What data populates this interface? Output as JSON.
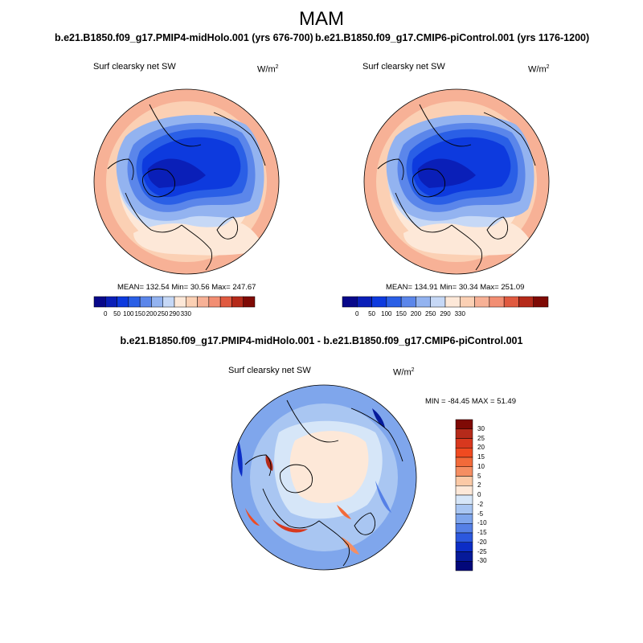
{
  "figure": {
    "season_title": "MAM"
  },
  "panels": [
    {
      "run_label": "b.e21.B1850.f09_g17.PMIP4-midHolo.001 (yrs 676-700)",
      "variable": "Surf clearsky net SW",
      "units_base": "W/m",
      "units_exp": "2",
      "stats": "MEAN= 132.54  Min=  30.56  Max= 247.67",
      "colorbar_ticks": [
        "0",
        "50",
        "100",
        "150",
        "200",
        "250",
        "290",
        "330"
      ]
    },
    {
      "run_label": "b.e21.B1850.f09_g17.CMIP6-piControl.001 (yrs 1176-1200)",
      "variable": "Surf clearsky net SW",
      "units_base": "W/m",
      "units_exp": "2",
      "stats": "MEAN= 134.91  Min=  30.34  Max= 251.09",
      "colorbar_ticks": [
        "0",
        "50",
        "100",
        "150",
        "200",
        "250",
        "290",
        "330"
      ]
    }
  ],
  "difference": {
    "title": "b.e21.B1850.f09_g17.PMIP4-midHolo.001 - b.e21.B1850.f09_g17.CMIP6-piControl.001",
    "variable": "Surf clearsky net SW",
    "units": "W/m",
    "units_exp": "2",
    "stats": "MIN = -84.45 MAX =  51.49",
    "colorbar_ticks": [
      "30",
      "25",
      "20",
      "15",
      "10",
      "5",
      "2",
      "0",
      "-2",
      "-5",
      "-10",
      "-15",
      "-20",
      "-25",
      "-30"
    ]
  },
  "colors": {
    "abs_scale": [
      "#08088a",
      "#0a1fb8",
      "#0d3ade",
      "#2a5fe6",
      "#5b86ea",
      "#93b3f0",
      "#c6d8f6",
      "#fde8d8",
      "#fbd0b4",
      "#f7b196",
      "#f28e73",
      "#e05a40",
      "#b52a1a",
      "#7f0a05"
    ],
    "diff_scale": [
      "#7f0a05",
      "#b52a1a",
      "#d8381e",
      "#f04a20",
      "#f26a3a",
      "#f58e62",
      "#fbc9a6",
      "#fde8d8",
      "#d6e6f8",
      "#a9c6f2",
      "#7fa6ec",
      "#5580e6",
      "#2c58de",
      "#0c2dc6",
      "#061a9a",
      "#02087a"
    ]
  }
}
